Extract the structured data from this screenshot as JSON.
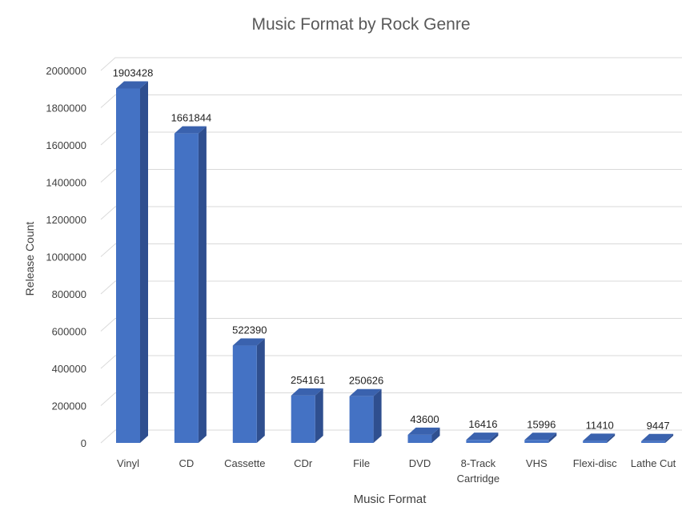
{
  "chart_data": {
    "type": "bar",
    "title": "Music Format by Rock Genre",
    "xlabel": "Music Format",
    "ylabel": "Release Count",
    "categories": [
      "Vinyl",
      "CD",
      "Cassette",
      "CDr",
      "File",
      "DVD",
      "8-Track Cartridge",
      "VHS",
      "Flexi-disc",
      "Lathe Cut"
    ],
    "values": [
      1903428,
      1661844,
      522390,
      254161,
      250626,
      43600,
      16416,
      15996,
      11410,
      9447
    ],
    "data_labels": [
      "1903428",
      "1661844",
      "522390",
      "254161",
      "250626",
      "43600",
      "16416",
      "15996",
      "11410",
      "9447"
    ],
    "ylim": [
      0,
      2000000
    ],
    "yticks": [
      0,
      200000,
      400000,
      600000,
      800000,
      1000000,
      1200000,
      1400000,
      1600000,
      1800000,
      2000000
    ],
    "grid": true,
    "legend": "none",
    "style": "3d-bar",
    "colors": {
      "bar_front": "#4472C4",
      "bar_side": "#2F4F8F",
      "bar_top": "#3A62AE",
      "grid": "#d9d9d9",
      "text": "#404040",
      "title": "#595959"
    }
  }
}
